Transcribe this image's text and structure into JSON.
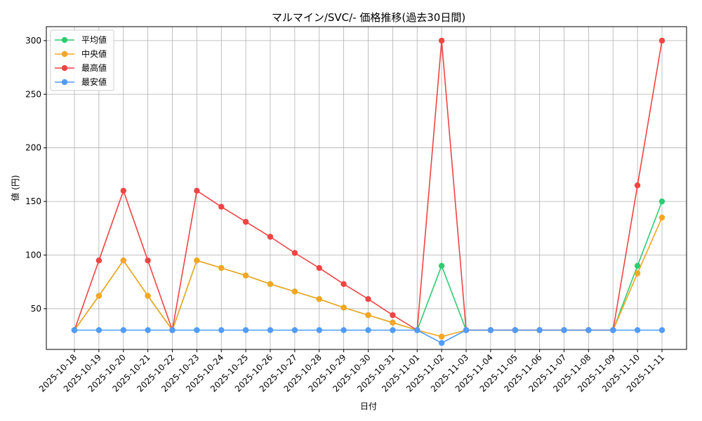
{
  "chart_data": {
    "type": "line",
    "title": "マルマイン/SVC/- 価格推移(過去30日間)",
    "xlabel": "日付",
    "ylabel": "値 (円)",
    "ylim": [
      12,
      313
    ],
    "yticks": [
      50,
      100,
      150,
      200,
      250,
      300
    ],
    "grid": true,
    "legend_position": "top-left",
    "x": [
      "2025-10-18",
      "2025-10-19",
      "2025-10-20",
      "2025-10-21",
      "2025-10-22",
      "2025-10-23",
      "2025-10-24",
      "2025-10-25",
      "2025-10-26",
      "2025-10-27",
      "2025-10-28",
      "2025-10-29",
      "2025-10-30",
      "2025-10-31",
      "2025-11-01",
      "2025-11-02",
      "2025-11-03",
      "2025-11-04",
      "2025-11-05",
      "2025-11-06",
      "2025-11-07",
      "2025-11-08",
      "2025-11-09",
      "2025-11-10",
      "2025-11-11"
    ],
    "series": [
      {
        "name": "平均値",
        "color": "#2ecc71",
        "values": [
          30,
          62,
          95,
          62,
          30,
          95,
          88,
          81,
          73,
          66,
          59,
          51,
          44,
          37,
          30,
          90,
          30,
          30,
          30,
          30,
          30,
          30,
          30,
          90,
          150
        ]
      },
      {
        "name": "中央値",
        "color": "#f5a623",
        "values": [
          30,
          62,
          95,
          62,
          30,
          95,
          88,
          81,
          73,
          66,
          59,
          51,
          44,
          37,
          30,
          24,
          30,
          30,
          30,
          30,
          30,
          30,
          30,
          83,
          135
        ]
      },
      {
        "name": "最高値",
        "color": "#ef4444",
        "values": [
          30,
          95,
          160,
          95,
          30,
          160,
          145,
          131,
          117,
          102,
          88,
          73,
          59,
          44,
          30,
          300,
          30,
          30,
          30,
          30,
          30,
          30,
          30,
          165,
          300
        ]
      },
      {
        "name": "最安値",
        "color": "#4f9cf9",
        "values": [
          30,
          30,
          30,
          30,
          30,
          30,
          30,
          30,
          30,
          30,
          30,
          30,
          30,
          30,
          30,
          18,
          30,
          30,
          30,
          30,
          30,
          30,
          30,
          30,
          30
        ]
      }
    ]
  }
}
